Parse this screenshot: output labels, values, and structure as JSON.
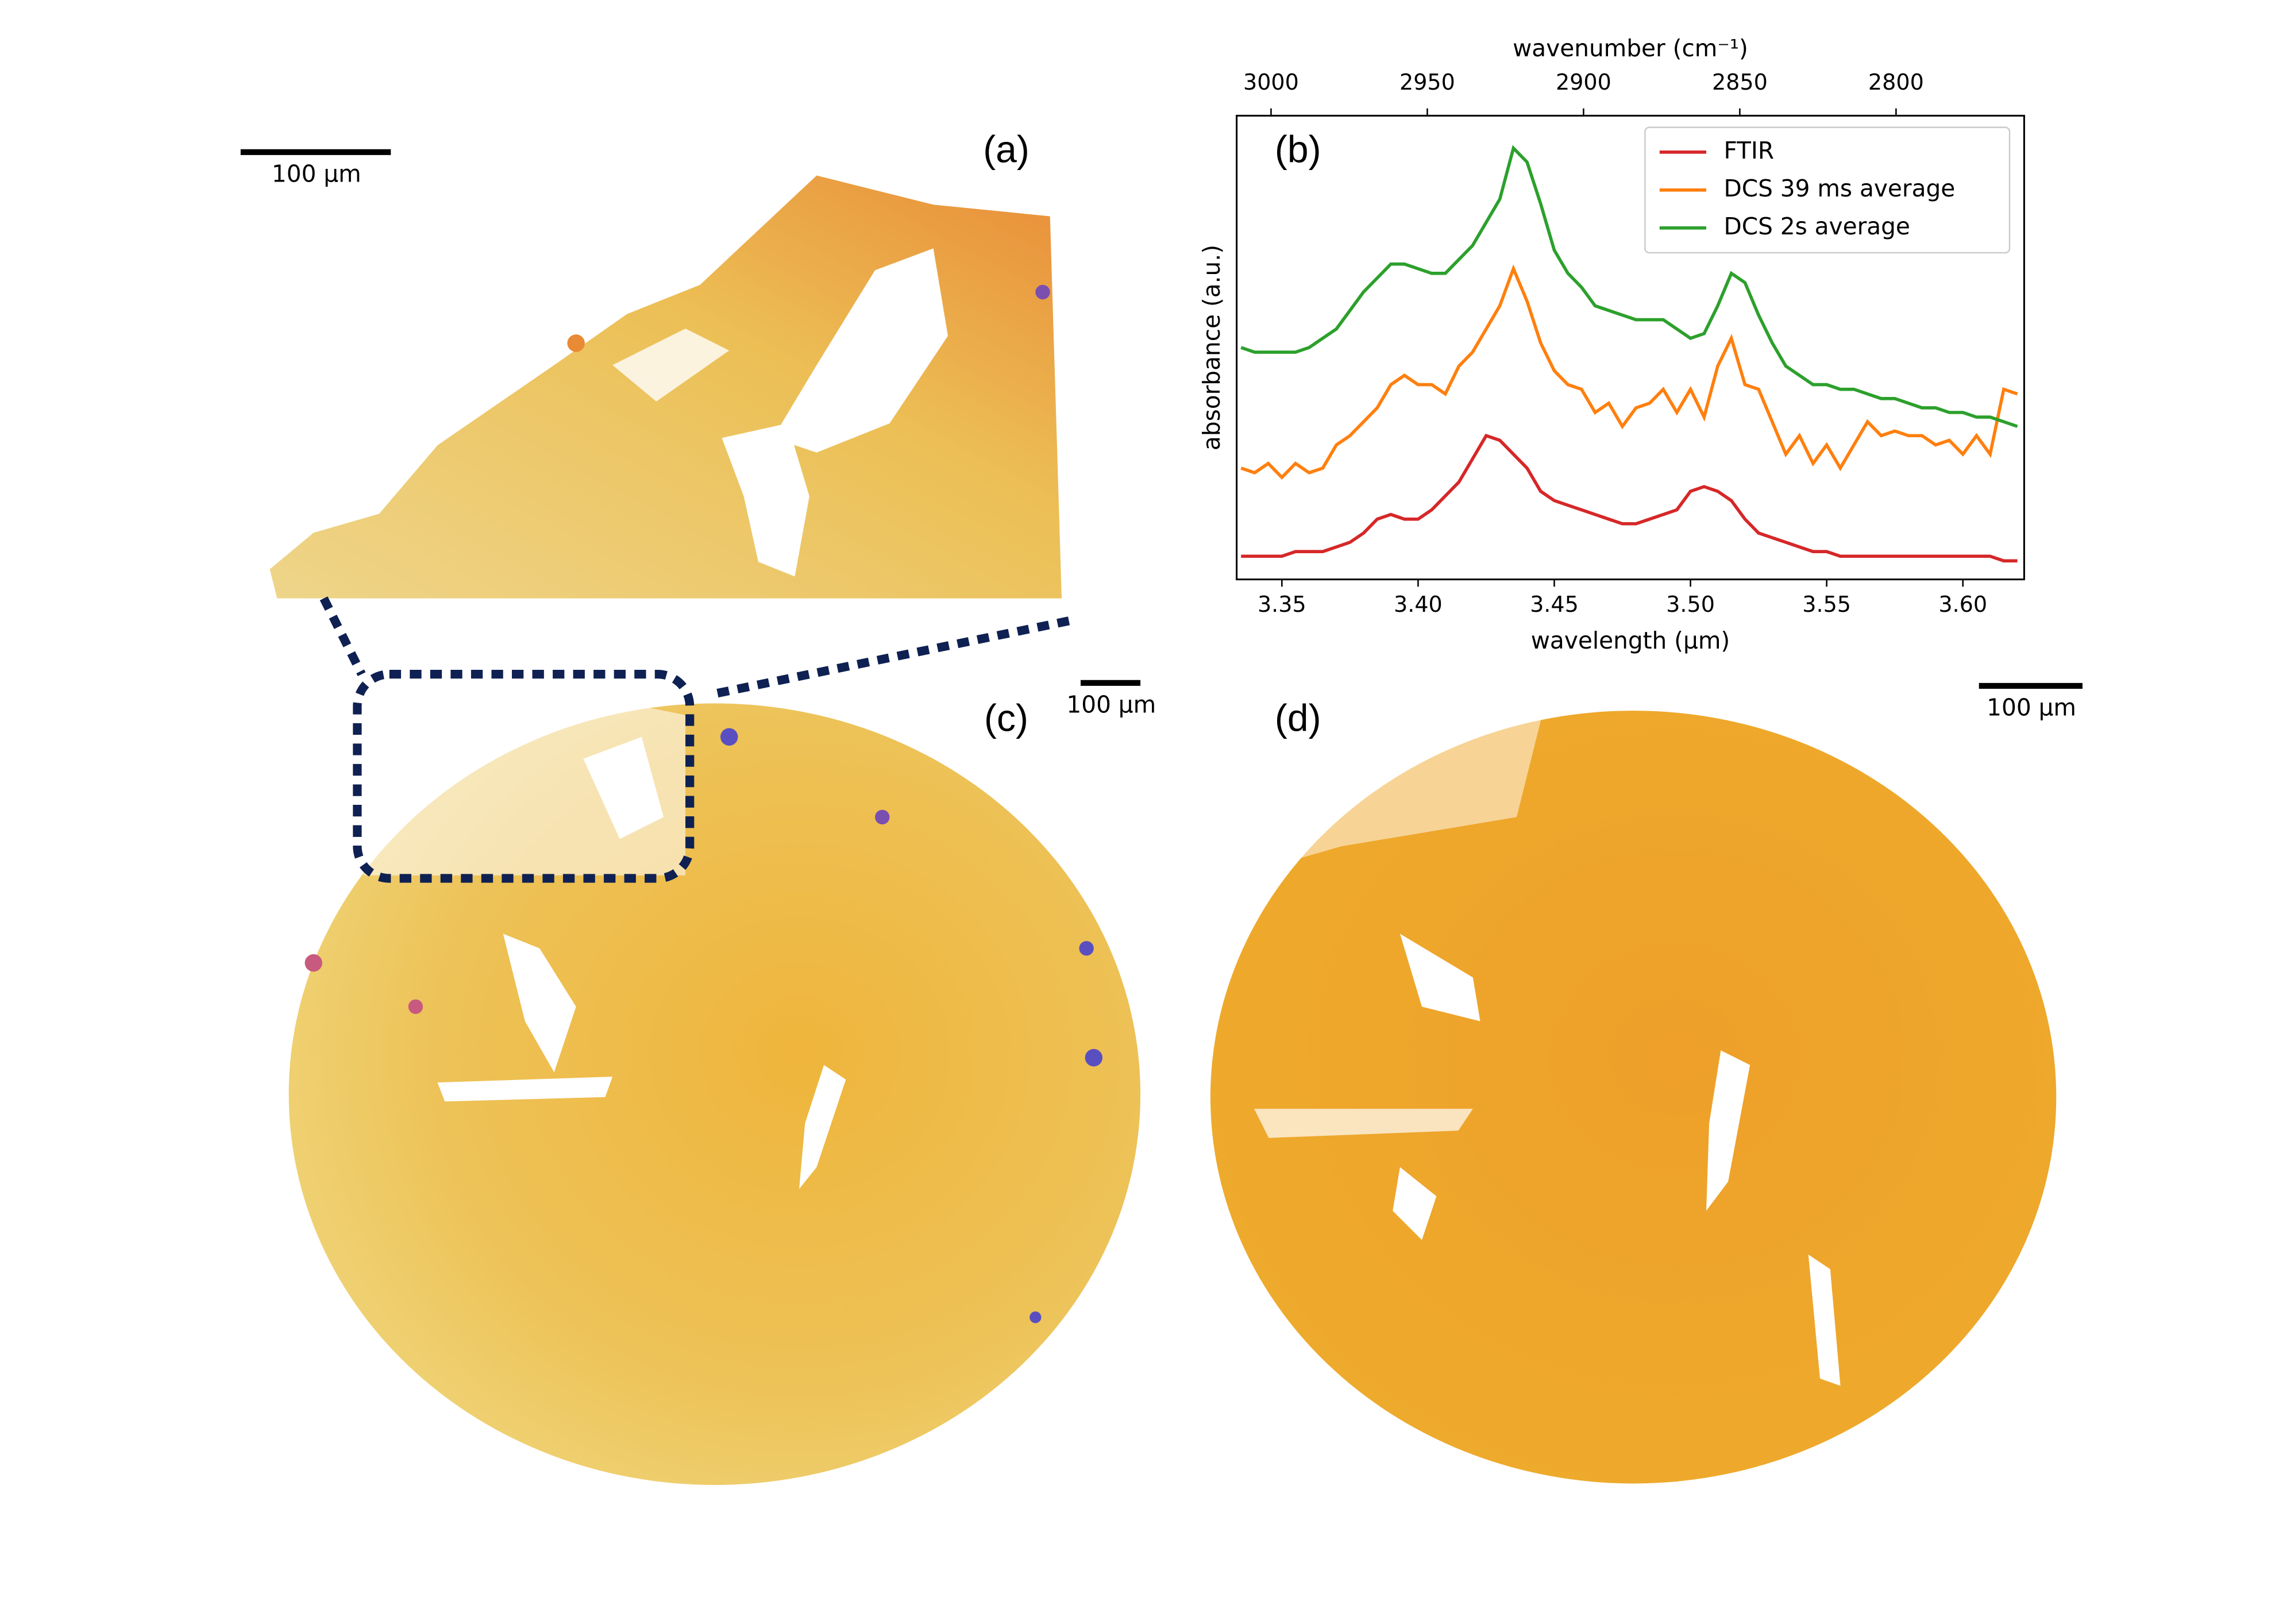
{
  "panels": {
    "a": "(a)",
    "b": "(b)",
    "c": "(c)",
    "d": "(d)"
  },
  "scale_bars": [
    "100 µm",
    "100 µm",
    "100 µm"
  ],
  "chart_data": {
    "type": "line",
    "xlabel": "wavelength (µm)",
    "ylabel": "absorbance (a.u.)",
    "x2label": "wavenumber (cm⁻¹)",
    "x": [
      3.335,
      3.34,
      3.345,
      3.35,
      3.355,
      3.36,
      3.365,
      3.37,
      3.375,
      3.38,
      3.385,
      3.39,
      3.395,
      3.4,
      3.405,
      3.41,
      3.415,
      3.42,
      3.425,
      3.43,
      3.435,
      3.44,
      3.445,
      3.45,
      3.455,
      3.46,
      3.465,
      3.47,
      3.475,
      3.48,
      3.485,
      3.49,
      3.495,
      3.5,
      3.505,
      3.51,
      3.515,
      3.52,
      3.525,
      3.53,
      3.535,
      3.54,
      3.545,
      3.55,
      3.555,
      3.56,
      3.565,
      3.57,
      3.575,
      3.58,
      3.585,
      3.59,
      3.595,
      3.6,
      3.605,
      3.61,
      3.615,
      3.62
    ],
    "series": [
      {
        "name": "FTIR",
        "color": "#d62728",
        "values": [
          0.05,
          0.05,
          0.05,
          0.05,
          0.06,
          0.06,
          0.06,
          0.07,
          0.08,
          0.1,
          0.13,
          0.14,
          0.13,
          0.13,
          0.15,
          0.18,
          0.21,
          0.26,
          0.31,
          0.3,
          0.27,
          0.24,
          0.19,
          0.17,
          0.16,
          0.15,
          0.14,
          0.13,
          0.12,
          0.12,
          0.13,
          0.14,
          0.15,
          0.19,
          0.2,
          0.19,
          0.17,
          0.13,
          0.1,
          0.09,
          0.08,
          0.07,
          0.06,
          0.06,
          0.05,
          0.05,
          0.05,
          0.05,
          0.05,
          0.05,
          0.05,
          0.05,
          0.05,
          0.05,
          0.05,
          0.05,
          0.04,
          0.04
        ]
      },
      {
        "name": "DCS 39 ms average",
        "color": "#ff7f0e",
        "values": [
          0.24,
          0.23,
          0.25,
          0.22,
          0.25,
          0.23,
          0.24,
          0.29,
          0.31,
          0.34,
          0.37,
          0.42,
          0.44,
          0.42,
          0.42,
          0.4,
          0.46,
          0.49,
          0.54,
          0.59,
          0.67,
          0.6,
          0.51,
          0.45,
          0.42,
          0.41,
          0.36,
          0.38,
          0.33,
          0.37,
          0.38,
          0.41,
          0.36,
          0.41,
          0.35,
          0.46,
          0.52,
          0.42,
          0.41,
          0.34,
          0.27,
          0.31,
          0.25,
          0.29,
          0.24,
          0.29,
          0.34,
          0.31,
          0.32,
          0.31,
          0.31,
          0.29,
          0.3,
          0.27,
          0.31,
          0.27,
          0.41,
          0.4
        ]
      },
      {
        "name": "DCS 2s average",
        "color": "#2ca02c",
        "values": [
          0.5,
          0.49,
          0.49,
          0.49,
          0.49,
          0.5,
          0.52,
          0.54,
          0.58,
          0.62,
          0.65,
          0.68,
          0.68,
          0.67,
          0.66,
          0.66,
          0.69,
          0.72,
          0.77,
          0.82,
          0.93,
          0.9,
          0.81,
          0.71,
          0.66,
          0.63,
          0.59,
          0.58,
          0.57,
          0.56,
          0.56,
          0.56,
          0.54,
          0.52,
          0.53,
          0.59,
          0.66,
          0.64,
          0.57,
          0.51,
          0.46,
          0.44,
          0.42,
          0.42,
          0.41,
          0.41,
          0.4,
          0.39,
          0.39,
          0.38,
          0.37,
          0.37,
          0.36,
          0.36,
          0.35,
          0.35,
          0.34,
          0.33
        ]
      }
    ],
    "xlim": [
      3.3334,
      3.6225
    ],
    "xticks": [
      3.35,
      {
        "value": 3.4,
        "label": "3.40"
      },
      3.45,
      {
        "value": 3.5,
        "label": "3.50"
      },
      3.55,
      {
        "value": 3.6,
        "label": "3.60"
      }
    ],
    "x2lim": [
      3011,
      2759
    ],
    "x2ticks": [
      3000,
      2950,
      2900,
      2850,
      2800
    ],
    "ylim": [
      0,
      1
    ],
    "legend": "upper right"
  }
}
